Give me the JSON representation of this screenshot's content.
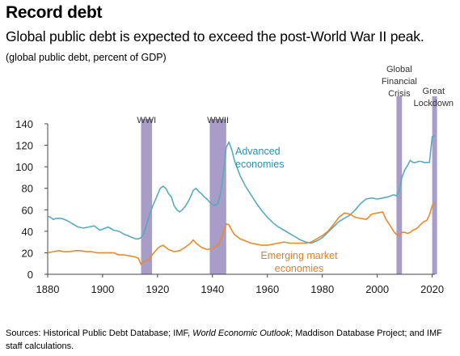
{
  "title": "Record debt",
  "subtitle": "Global public debt is expected to exceed the post-World War II peak.",
  "unit_note": "(global public debt, percent of GDP)",
  "source": {
    "prefix": "Sources: Historical Public Debt Database; IMF, ",
    "italic": "World Economic Outlook",
    "suffix": "; Maddison Database Project; and IMF staff calculations."
  },
  "colors": {
    "advanced": "#5aaabf",
    "emerging": "#e98a2e",
    "shade": "#a89cc8"
  },
  "chart_data": {
    "type": "line",
    "xlim": [
      1880,
      2021
    ],
    "ylim": [
      0,
      140
    ],
    "x_ticks": [
      "1880",
      "1900",
      "1920",
      "1940",
      "1960",
      "1980",
      "2000",
      "2020"
    ],
    "y_ticks": [
      "0",
      "20",
      "40",
      "60",
      "80",
      "100",
      "120",
      "140"
    ],
    "events": [
      {
        "label": [
          "WWI"
        ],
        "start": 1914,
        "end": 1918
      },
      {
        "label": [
          "WWII"
        ],
        "start": 1939,
        "end": 1945
      },
      {
        "label": [
          "Global",
          "Financial",
          "Crisis"
        ],
        "start": 2007,
        "end": 2009
      },
      {
        "label": [
          "Great",
          "Lockdown"
        ],
        "start": 2020,
        "end": 2021
      }
    ],
    "series": [
      {
        "name": "Advanced economies",
        "label_lines": [
          "Advanced",
          "economies"
        ],
        "points": [
          [
            1880,
            54
          ],
          [
            1881,
            53
          ],
          [
            1882,
            51
          ],
          [
            1883,
            52
          ],
          [
            1885,
            52
          ],
          [
            1887,
            50
          ],
          [
            1889,
            47
          ],
          [
            1891,
            44
          ],
          [
            1893,
            43
          ],
          [
            1895,
            44
          ],
          [
            1897,
            45
          ],
          [
            1899,
            41
          ],
          [
            1900,
            42
          ],
          [
            1902,
            44
          ],
          [
            1904,
            41
          ],
          [
            1906,
            40
          ],
          [
            1908,
            37
          ],
          [
            1910,
            35
          ],
          [
            1912,
            33
          ],
          [
            1913,
            33
          ],
          [
            1914,
            34
          ],
          [
            1915,
            38
          ],
          [
            1916,
            46
          ],
          [
            1917,
            55
          ],
          [
            1918,
            62
          ],
          [
            1919,
            68
          ],
          [
            1920,
            74
          ],
          [
            1921,
            80
          ],
          [
            1922,
            82
          ],
          [
            1923,
            80
          ],
          [
            1924,
            75
          ],
          [
            1925,
            72
          ],
          [
            1926,
            64
          ],
          [
            1927,
            60
          ],
          [
            1928,
            58
          ],
          [
            1929,
            60
          ],
          [
            1930,
            63
          ],
          [
            1931,
            67
          ],
          [
            1932,
            72
          ],
          [
            1933,
            78
          ],
          [
            1934,
            80
          ],
          [
            1935,
            77
          ],
          [
            1936,
            75
          ],
          [
            1937,
            72
          ],
          [
            1938,
            70
          ],
          [
            1939,
            67
          ],
          [
            1940,
            65
          ],
          [
            1941,
            64
          ],
          [
            1942,
            66
          ],
          [
            1943,
            76
          ],
          [
            1944,
            95
          ],
          [
            1945,
            118
          ],
          [
            1946,
            123
          ],
          [
            1947,
            116
          ],
          [
            1948,
            106
          ],
          [
            1949,
            99
          ],
          [
            1950,
            92
          ],
          [
            1952,
            82
          ],
          [
            1954,
            74
          ],
          [
            1956,
            66
          ],
          [
            1958,
            59
          ],
          [
            1960,
            53
          ],
          [
            1962,
            48
          ],
          [
            1964,
            44
          ],
          [
            1966,
            41
          ],
          [
            1968,
            38
          ],
          [
            1970,
            35
          ],
          [
            1972,
            32
          ],
          [
            1974,
            30
          ],
          [
            1976,
            29
          ],
          [
            1978,
            31
          ],
          [
            1980,
            34
          ],
          [
            1982,
            39
          ],
          [
            1984,
            44
          ],
          [
            1986,
            49
          ],
          [
            1988,
            52
          ],
          [
            1990,
            55
          ],
          [
            1992,
            60
          ],
          [
            1994,
            66
          ],
          [
            1996,
            70
          ],
          [
            1998,
            71
          ],
          [
            2000,
            70
          ],
          [
            2002,
            71
          ],
          [
            2004,
            72
          ],
          [
            2006,
            74
          ],
          [
            2007,
            73
          ],
          [
            2008,
            78
          ],
          [
            2009,
            90
          ],
          [
            2010,
            97
          ],
          [
            2011,
            101
          ],
          [
            2012,
            106
          ],
          [
            2013,
            104
          ],
          [
            2014,
            104
          ],
          [
            2015,
            105
          ],
          [
            2016,
            105
          ],
          [
            2017,
            104
          ],
          [
            2018,
            104
          ],
          [
            2019,
            104
          ],
          [
            2020,
            128
          ],
          [
            2021,
            129
          ]
        ]
      },
      {
        "name": "Emerging market economies",
        "label_lines": [
          "Emerging market",
          "economies"
        ],
        "points": [
          [
            1880,
            20
          ],
          [
            1882,
            21
          ],
          [
            1884,
            22
          ],
          [
            1886,
            21
          ],
          [
            1888,
            21
          ],
          [
            1890,
            22
          ],
          [
            1892,
            22
          ],
          [
            1894,
            21
          ],
          [
            1896,
            21
          ],
          [
            1898,
            20
          ],
          [
            1900,
            20
          ],
          [
            1902,
            20
          ],
          [
            1904,
            20
          ],
          [
            1906,
            18
          ],
          [
            1908,
            18
          ],
          [
            1910,
            17
          ],
          [
            1912,
            16
          ],
          [
            1913,
            15
          ],
          [
            1914,
            9
          ],
          [
            1915,
            12
          ],
          [
            1916,
            13
          ],
          [
            1917,
            14
          ],
          [
            1918,
            18
          ],
          [
            1919,
            21
          ],
          [
            1920,
            24
          ],
          [
            1921,
            26
          ],
          [
            1922,
            27
          ],
          [
            1923,
            25
          ],
          [
            1924,
            23
          ],
          [
            1925,
            22
          ],
          [
            1926,
            21
          ],
          [
            1928,
            22
          ],
          [
            1930,
            25
          ],
          [
            1932,
            29
          ],
          [
            1933,
            32
          ],
          [
            1934,
            29
          ],
          [
            1935,
            27
          ],
          [
            1936,
            25
          ],
          [
            1938,
            23
          ],
          [
            1940,
            24
          ],
          [
            1942,
            27
          ],
          [
            1943,
            32
          ],
          [
            1944,
            40
          ],
          [
            1945,
            47
          ],
          [
            1946,
            46
          ],
          [
            1947,
            41
          ],
          [
            1948,
            37
          ],
          [
            1950,
            33
          ],
          [
            1952,
            31
          ],
          [
            1954,
            29
          ],
          [
            1956,
            28
          ],
          [
            1958,
            27
          ],
          [
            1960,
            27
          ],
          [
            1962,
            28
          ],
          [
            1964,
            29
          ],
          [
            1966,
            30
          ],
          [
            1968,
            29
          ],
          [
            1970,
            29
          ],
          [
            1972,
            29
          ],
          [
            1974,
            29
          ],
          [
            1976,
            30
          ],
          [
            1978,
            33
          ],
          [
            1980,
            36
          ],
          [
            1982,
            40
          ],
          [
            1984,
            46
          ],
          [
            1986,
            53
          ],
          [
            1988,
            57
          ],
          [
            1990,
            56
          ],
          [
            1992,
            53
          ],
          [
            1994,
            52
          ],
          [
            1996,
            51
          ],
          [
            1998,
            56
          ],
          [
            2000,
            57
          ],
          [
            2002,
            58
          ],
          [
            2003,
            52
          ],
          [
            2004,
            48
          ],
          [
            2005,
            44
          ],
          [
            2006,
            40
          ],
          [
            2007,
            37
          ],
          [
            2008,
            36
          ],
          [
            2009,
            39
          ],
          [
            2010,
            39
          ],
          [
            2011,
            38
          ],
          [
            2012,
            39
          ],
          [
            2013,
            41
          ],
          [
            2014,
            42
          ],
          [
            2015,
            44
          ],
          [
            2016,
            47
          ],
          [
            2017,
            49
          ],
          [
            2018,
            50
          ],
          [
            2019,
            55
          ],
          [
            2020,
            64
          ],
          [
            2021,
            66
          ]
        ]
      }
    ]
  }
}
